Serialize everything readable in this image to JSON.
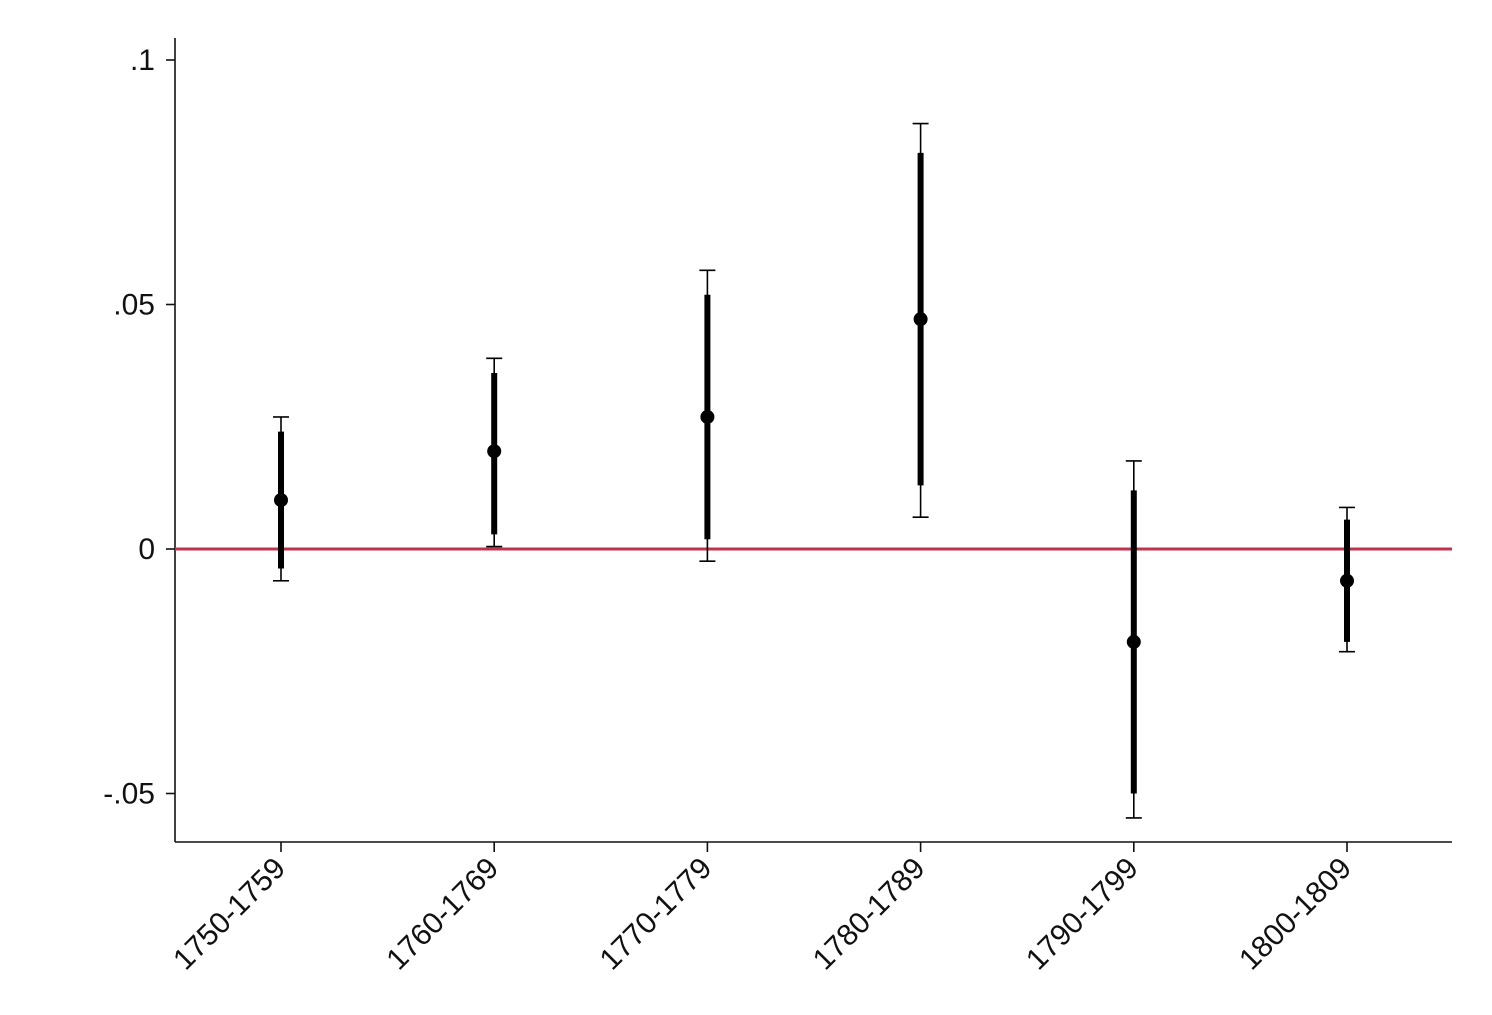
{
  "chart_data": {
    "type": "scatter",
    "subtype": "coefficient plot with confidence intervals",
    "categories": [
      "1750-1759",
      "1760-1769",
      "1770-1779",
      "1780-1789",
      "1790-1799",
      "1800-1809"
    ],
    "estimates": [
      0.01,
      0.02,
      0.027,
      0.047,
      -0.019,
      -0.0065
    ],
    "ci_inner": [
      [
        -0.004,
        0.024
      ],
      [
        0.003,
        0.036
      ],
      [
        0.002,
        0.052
      ],
      [
        0.013,
        0.081
      ],
      [
        -0.05,
        0.012
      ],
      [
        -0.019,
        0.006
      ]
    ],
    "ci_outer": [
      [
        -0.0065,
        0.027
      ],
      [
        0.0005,
        0.039
      ],
      [
        -0.0025,
        0.057
      ],
      [
        0.0065,
        0.087
      ],
      [
        -0.055,
        0.018
      ],
      [
        -0.021,
        0.0085
      ]
    ],
    "reference_line": {
      "y": 0,
      "color": "#c0334d"
    },
    "marker_color": "#000000",
    "yticks": [
      -0.05,
      0,
      0.05,
      0.1
    ],
    "ytick_labels": [
      "-.05",
      "0",
      ".05",
      ".1"
    ],
    "ylim": [
      -0.06,
      0.105
    ],
    "xlabel": "",
    "ylabel": "",
    "title": "",
    "grid": false,
    "legend": "none"
  }
}
